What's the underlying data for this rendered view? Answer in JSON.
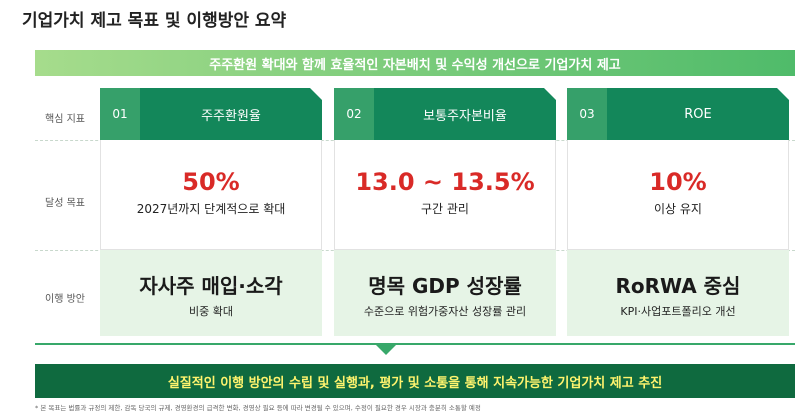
{
  "header": {
    "title": "기업가치 제고 목표 및 이행방안 요약"
  },
  "banner": "주주환원 확대와 함께 효율적인 자본배치 및 수익성 개선으로 기업가치 제고",
  "row_labels": [
    "핵심 지표",
    "달성 목표",
    "이행 방안"
  ],
  "cards": [
    {
      "number": "01",
      "title": "주주환원율",
      "target": "50%",
      "target_note": "2027년까지 단계적으로 확대",
      "plan": "자사주 매입·소각",
      "plan_note": "비중 확대"
    },
    {
      "number": "02",
      "title": "보통주자본비율",
      "target": "13.0 ~ 13.5%",
      "target_note": "구간 관리",
      "plan": "명목 GDP 성장률",
      "plan_note": "수준으로 위험가중자산 성장률 관리"
    },
    {
      "number": "03",
      "title": "ROE",
      "target": "10%",
      "target_note": "이상 유지",
      "plan": "RoRWA 중심",
      "plan_note": "KPI·사업포트폴리오 개선"
    }
  ],
  "conclusion": "실질적인 이행 방안의 수립 및 실행과, 평가 및 소통을 통해 지속가능한 기업가치 제고 추진",
  "footnote": "* 본 목표는 법률과 규정의 제한, 감독 당국의 규제, 경영환경의 급격한 변화, 경영상 필요 등에 따라 변경될 수 있으며, 수정이 필요한 경우 시장과 충분히 소통할 예정"
}
